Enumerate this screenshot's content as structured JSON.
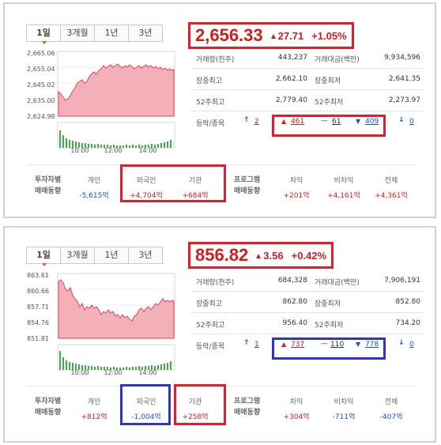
{
  "panels": [
    {
      "tabs": [
        "1일",
        "3개월",
        "1년",
        "3년"
      ],
      "chart": {
        "yticks": [
          "2,665.06",
          "2,655.04",
          "2,645.02",
          "2,635.00",
          "2,624.98"
        ],
        "xticks": [
          "10:00",
          "12:00",
          "14:00"
        ]
      },
      "price": "2,656.33",
      "change": "27.71",
      "percent": "+1.05%",
      "stats": [
        {
          "k1": "거래량(천주)",
          "v1": "443,237",
          "k2": "거래대금(백만)",
          "v2": "9,934,596"
        },
        {
          "k1": "장중최고",
          "v1": "2,662.10",
          "k2": "장중최저",
          "v2": "2,641.35"
        },
        {
          "k1": "52주최고",
          "v1": "2,779.40",
          "k2": "52주최저",
          "v2": "2,273.97"
        }
      ],
      "advdec": {
        "label": "등락/종목",
        "upper": "2",
        "up": "461",
        "flat": "61",
        "down": "409",
        "lower": "0"
      },
      "trade": {
        "label1": "투자자별",
        "label2": "매매동향",
        "individual_h": "개인",
        "individual_v": "-5,615억",
        "foreign_h": "외국인",
        "foreign_v": "+4,704억",
        "inst_h": "기관",
        "inst_v": "+684억",
        "prog1": "프로그램",
        "prog2": "매매동향",
        "arb_h": "차익",
        "arb_v": "+201억",
        "nonarb_h": "비차익",
        "nonarb_v": "+4,161억",
        "total_h": "전체",
        "total_v": "+4,361억"
      }
    },
    {
      "tabs": [
        "1일",
        "3개월",
        "1년",
        "3년"
      ],
      "chart": {
        "yticks": [
          "863.61",
          "860.66",
          "857.71",
          "854.76",
          "851.81"
        ],
        "xticks": [
          "10:00",
          "12:00",
          "14:00"
        ]
      },
      "price": "856.82",
      "change": "3.56",
      "percent": "+0.42%",
      "stats": [
        {
          "k1": "거래량(천주)",
          "v1": "684,328",
          "k2": "거래대금(백만)",
          "v2": "7,906,191"
        },
        {
          "k1": "장중최고",
          "v1": "862.80",
          "k2": "장중최저",
          "v2": "852.80"
        },
        {
          "k1": "52주최고",
          "v1": "956.40",
          "k2": "52주최저",
          "v2": "734.20"
        }
      ],
      "advdec": {
        "label": "등락/종목",
        "upper": "1",
        "up": "737",
        "flat": "110",
        "down": "778",
        "lower": "0"
      },
      "trade": {
        "label1": "투자자별",
        "label2": "매매동향",
        "individual_h": "개인",
        "individual_v": "+812억",
        "foreign_h": "외국인",
        "foreign_v": "-1,004억",
        "inst_h": "기관",
        "inst_v": "+258억",
        "prog1": "프로그램",
        "prog2": "매매동향",
        "arb_h": "차익",
        "arb_v": "+304억",
        "nonarb_h": "비차익",
        "nonarb_v": "-711억",
        "total_h": "전체",
        "total_v": "-407억"
      }
    }
  ],
  "colors": {
    "up": "#d21d1d",
    "down": "#1b4fd8",
    "highlight_red": "#e51d2a",
    "highlight_blue": "#2a36c8",
    "area_fill": "#f2a3ae",
    "volume": "#3cb043"
  }
}
